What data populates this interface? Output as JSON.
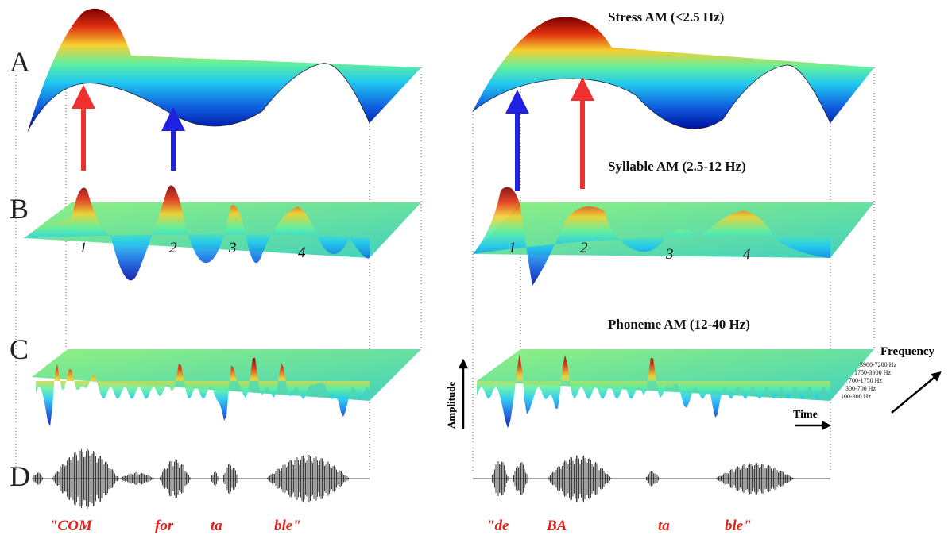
{
  "panels": [
    {
      "label": "A",
      "title": "Stress AM (<2.5 Hz)"
    },
    {
      "label": "B",
      "title": "Syllable AM (2.5-12 Hz)"
    },
    {
      "label": "C",
      "title": "Phoneme AM (12-40 Hz)"
    },
    {
      "label": "D"
    }
  ],
  "left": {
    "peaks": [
      "1",
      "2",
      "3",
      "4"
    ],
    "words": [
      "\"COM",
      "for",
      "ta",
      "ble\""
    ]
  },
  "right": {
    "peaks": [
      "1",
      "2",
      "3",
      "4"
    ],
    "words": [
      "\"de",
      "BA",
      "ta",
      "ble\""
    ]
  },
  "axes": {
    "frequency": "Frequency",
    "bands": [
      "3900-7200 Hz",
      "1750-3900 Hz",
      "700-1750 Hz",
      "300-700 Hz",
      "100-300 Hz"
    ],
    "amplitude": "Amplitude",
    "time": "Time"
  }
}
